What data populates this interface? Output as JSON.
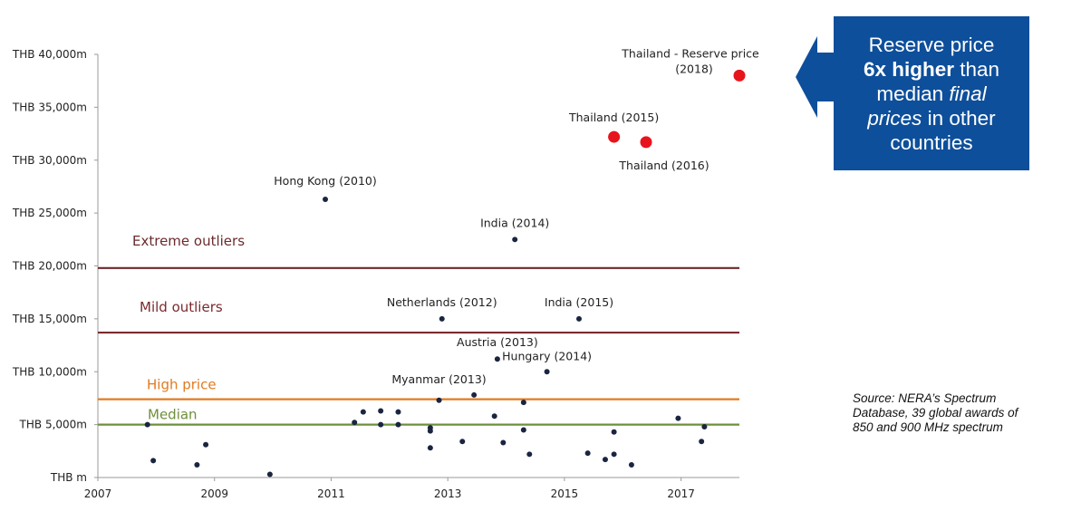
{
  "chart_data": {
    "type": "scatter",
    "title": "",
    "xlabel": "",
    "ylabel": "",
    "xlim": [
      2007,
      2018
    ],
    "ylim": [
      0,
      40000
    ],
    "x_ticks": [
      "2007",
      "2009",
      "2011",
      "2013",
      "2015",
      "2017"
    ],
    "y_ticks": [
      "THB m",
      "THB 5,000m",
      "THB 10,000m",
      "THB 15,000m",
      "THB 20,000m",
      "THB 25,000m",
      "THB 30,000m",
      "THB 35,000m",
      "THB 40,000m"
    ],
    "reference_lines": [
      {
        "label": "Median",
        "value": 5000,
        "color": "#6e8f3a"
      },
      {
        "label": "High price",
        "value": 7400,
        "color": "#e07b1f"
      },
      {
        "label": "Mild outliers",
        "value": 13700,
        "color": "#7b2a2e"
      },
      {
        "label": "Extreme outliers",
        "value": 19800,
        "color": "#6b2a2e"
      }
    ],
    "series": [
      {
        "color": "#1a2540",
        "points": [
          {
            "x": 2007.85,
            "y": 5000
          },
          {
            "x": 2007.95,
            "y": 1600
          },
          {
            "x": 2008.7,
            "y": 1200
          },
          {
            "x": 2008.85,
            "y": 3100
          },
          {
            "x": 2009.95,
            "y": 300
          },
          {
            "x": 2010.9,
            "y": 26300,
            "label": "Hong Kong (2010)"
          },
          {
            "x": 2011.4,
            "y": 5200
          },
          {
            "x": 2011.55,
            "y": 6200
          },
          {
            "x": 2011.85,
            "y": 6300
          },
          {
            "x": 2011.85,
            "y": 5000
          },
          {
            "x": 2012.15,
            "y": 6200
          },
          {
            "x": 2012.15,
            "y": 5000
          },
          {
            "x": 2012.7,
            "y": 4700
          },
          {
            "x": 2012.7,
            "y": 4400
          },
          {
            "x": 2012.7,
            "y": 2800
          },
          {
            "x": 2012.85,
            "y": 7300,
            "label": "Myanmar (2013)"
          },
          {
            "x": 2012.9,
            "y": 15000,
            "label": "Netherlands (2012)"
          },
          {
            "x": 2013.25,
            "y": 3400
          },
          {
            "x": 2013.45,
            "y": 7800
          },
          {
            "x": 2013.8,
            "y": 5800
          },
          {
            "x": 2013.85,
            "y": 11200,
            "label": "Austria (2013)"
          },
          {
            "x": 2013.95,
            "y": 3300
          },
          {
            "x": 2014.15,
            "y": 22500,
            "label": "India (2014)"
          },
          {
            "x": 2014.3,
            "y": 7100
          },
          {
            "x": 2014.3,
            "y": 4500
          },
          {
            "x": 2014.4,
            "y": 2200
          },
          {
            "x": 2014.7,
            "y": 10000,
            "label": "Hungary (2014)"
          },
          {
            "x": 2015.25,
            "y": 15000,
            "label": "India (2015)"
          },
          {
            "x": 2015.4,
            "y": 2300
          },
          {
            "x": 2015.7,
            "y": 1700
          },
          {
            "x": 2015.85,
            "y": 4300
          },
          {
            "x": 2015.85,
            "y": 2200
          },
          {
            "x": 2016.15,
            "y": 1200
          },
          {
            "x": 2016.95,
            "y": 5600
          },
          {
            "x": 2017.35,
            "y": 3400
          },
          {
            "x": 2017.4,
            "y": 4800
          }
        ]
      },
      {
        "color": "#e8141c",
        "points": [
          {
            "x": 2015.85,
            "y": 32200,
            "label": "Thailand (2015)"
          },
          {
            "x": 2016.4,
            "y": 31700,
            "label": "Thailand (2016)"
          },
          {
            "x": 2018.0,
            "y": 38000,
            "label": "Thailand - Reserve price (2018)"
          }
        ]
      }
    ],
    "grid": false,
    "legend": "none"
  },
  "callout": {
    "line1": "Reserve price",
    "line2_bold": "6x higher",
    "line2_rest": " than",
    "line3_plain": "median ",
    "line3_italic": "final",
    "line4_italic": "prices",
    "line4_rest": " in other",
    "line5": "countries",
    "color": "#0e4f9b"
  },
  "source": {
    "line1": "Source: NERA’s Spectrum",
    "line2": "Database, 39 global awards of",
    "line3": "850 and 900 MHz spectrum"
  }
}
